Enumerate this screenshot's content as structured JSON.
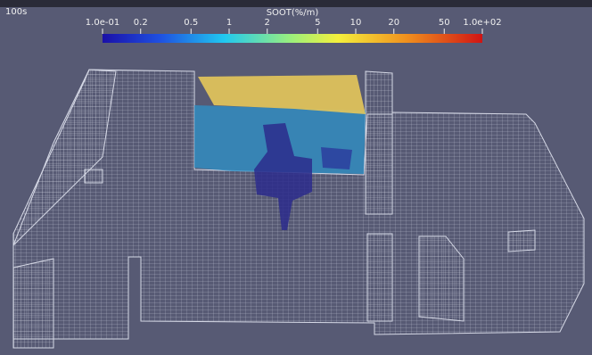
{
  "time_label": "100s",
  "colorbar": {
    "title": "SOOT(%/m)",
    "scale": "log",
    "range": [
      0.1,
      100
    ],
    "ticks": [
      {
        "value": 0.1,
        "label": "1.0e-01"
      },
      0.2,
      0.5,
      1,
      2,
      5,
      10,
      20,
      50,
      {
        "value": 100,
        "label": "1.0e+02"
      }
    ]
  }
}
